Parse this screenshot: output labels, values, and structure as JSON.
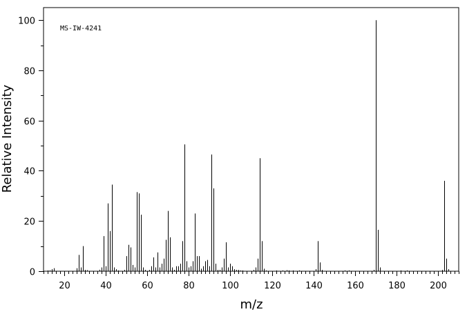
{
  "chart_data": {
    "type": "bar",
    "title": "",
    "annotation": "MS-IW-4241",
    "xlabel": "m/z",
    "ylabel": "Relative Intensity",
    "xlim": [
      10,
      210
    ],
    "ylim": [
      0,
      105
    ],
    "x_major_ticks": [
      20,
      40,
      60,
      80,
      100,
      120,
      140,
      160,
      180,
      200
    ],
    "x_minor_step": 2,
    "y_major_ticks": [
      0,
      20,
      40,
      60,
      80,
      100
    ],
    "y_minor_step": 10,
    "grid": false,
    "legend": "none",
    "bar_color": "#000000",
    "peaks": [
      {
        "x": 12,
        "y": 0.3
      },
      {
        "x": 13,
        "y": 0.3
      },
      {
        "x": 14,
        "y": 0.8
      },
      {
        "x": 15,
        "y": 1.2
      },
      {
        "x": 26,
        "y": 1.2
      },
      {
        "x": 27,
        "y": 6.5
      },
      {
        "x": 28,
        "y": 1.5
      },
      {
        "x": 29,
        "y": 10.0
      },
      {
        "x": 30,
        "y": 0.5
      },
      {
        "x": 31,
        "y": 0.4
      },
      {
        "x": 37,
        "y": 0.6
      },
      {
        "x": 38,
        "y": 1.5
      },
      {
        "x": 39,
        "y": 14.0
      },
      {
        "x": 40,
        "y": 2.0
      },
      {
        "x": 41,
        "y": 27.0
      },
      {
        "x": 42,
        "y": 16.0
      },
      {
        "x": 43,
        "y": 34.5
      },
      {
        "x": 44,
        "y": 1.5
      },
      {
        "x": 45,
        "y": 0.8
      },
      {
        "x": 46,
        "y": 0.3
      },
      {
        "x": 49,
        "y": 0.5
      },
      {
        "x": 50,
        "y": 6.0
      },
      {
        "x": 51,
        "y": 10.5
      },
      {
        "x": 52,
        "y": 9.5
      },
      {
        "x": 53,
        "y": 2.5
      },
      {
        "x": 54,
        "y": 1.5
      },
      {
        "x": 55,
        "y": 31.5
      },
      {
        "x": 56,
        "y": 31.0
      },
      {
        "x": 57,
        "y": 22.5
      },
      {
        "x": 58,
        "y": 1.5
      },
      {
        "x": 59,
        "y": 0.5
      },
      {
        "x": 61,
        "y": 0.5
      },
      {
        "x": 62,
        "y": 2.0
      },
      {
        "x": 63,
        "y": 5.5
      },
      {
        "x": 64,
        "y": 1.5
      },
      {
        "x": 65,
        "y": 7.5
      },
      {
        "x": 66,
        "y": 1.5
      },
      {
        "x": 67,
        "y": 3.0
      },
      {
        "x": 68,
        "y": 5.0
      },
      {
        "x": 69,
        "y": 12.5
      },
      {
        "x": 70,
        "y": 24.0
      },
      {
        "x": 71,
        "y": 13.5
      },
      {
        "x": 72,
        "y": 1.5
      },
      {
        "x": 73,
        "y": 0.5
      },
      {
        "x": 74,
        "y": 2.0
      },
      {
        "x": 75,
        "y": 2.0
      },
      {
        "x": 76,
        "y": 3.0
      },
      {
        "x": 77,
        "y": 12.0
      },
      {
        "x": 78,
        "y": 50.5
      },
      {
        "x": 79,
        "y": 4.0
      },
      {
        "x": 80,
        "y": 1.5
      },
      {
        "x": 81,
        "y": 2.0
      },
      {
        "x": 82,
        "y": 4.0
      },
      {
        "x": 83,
        "y": 23.0
      },
      {
        "x": 84,
        "y": 6.0
      },
      {
        "x": 85,
        "y": 6.0
      },
      {
        "x": 86,
        "y": 1.0
      },
      {
        "x": 87,
        "y": 2.0
      },
      {
        "x": 88,
        "y": 4.0
      },
      {
        "x": 89,
        "y": 4.5
      },
      {
        "x": 90,
        "y": 2.0
      },
      {
        "x": 91,
        "y": 46.5
      },
      {
        "x": 92,
        "y": 33.0
      },
      {
        "x": 93,
        "y": 3.0
      },
      {
        "x": 94,
        "y": 0.5
      },
      {
        "x": 95,
        "y": 0.5
      },
      {
        "x": 96,
        "y": 1.5
      },
      {
        "x": 97,
        "y": 5.0
      },
      {
        "x": 98,
        "y": 11.5
      },
      {
        "x": 99,
        "y": 1.5
      },
      {
        "x": 100,
        "y": 3.0
      },
      {
        "x": 101,
        "y": 2.0
      },
      {
        "x": 102,
        "y": 0.8
      },
      {
        "x": 103,
        "y": 0.5
      },
      {
        "x": 104,
        "y": 0.5
      },
      {
        "x": 105,
        "y": 0.3
      },
      {
        "x": 106,
        "y": 0.3
      },
      {
        "x": 111,
        "y": 0.5
      },
      {
        "x": 112,
        "y": 1.5
      },
      {
        "x": 113,
        "y": 5.0
      },
      {
        "x": 114,
        "y": 45.0
      },
      {
        "x": 115,
        "y": 12.0
      },
      {
        "x": 116,
        "y": 1.0
      },
      {
        "x": 117,
        "y": 0.3
      },
      {
        "x": 122,
        "y": 0.3
      },
      {
        "x": 125,
        "y": 0.3
      },
      {
        "x": 127,
        "y": 0.4
      },
      {
        "x": 128,
        "y": 0.3
      },
      {
        "x": 130,
        "y": 0.3
      },
      {
        "x": 133,
        "y": 0.3
      },
      {
        "x": 141,
        "y": 0.8
      },
      {
        "x": 142,
        "y": 12.0
      },
      {
        "x": 143,
        "y": 3.5
      },
      {
        "x": 144,
        "y": 0.5
      },
      {
        "x": 155,
        "y": 0.3
      },
      {
        "x": 157,
        "y": 0.3
      },
      {
        "x": 169,
        "y": 0.5
      },
      {
        "x": 170,
        "y": 100.0
      },
      {
        "x": 171,
        "y": 16.5
      },
      {
        "x": 172,
        "y": 1.5
      },
      {
        "x": 182,
        "y": 0.3
      },
      {
        "x": 185,
        "y": 0.3
      },
      {
        "x": 202,
        "y": 0.5
      },
      {
        "x": 203,
        "y": 36.0
      },
      {
        "x": 204,
        "y": 5.0
      },
      {
        "x": 205,
        "y": 0.8
      }
    ]
  }
}
